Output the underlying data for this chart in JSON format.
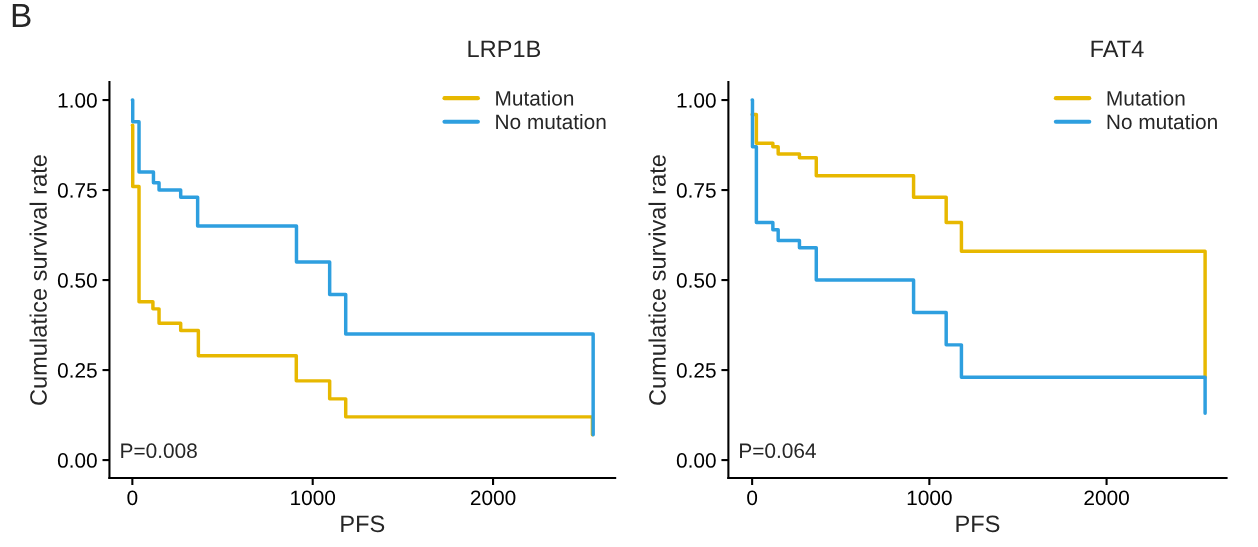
{
  "chart_data": [
    {
      "type": "step",
      "title": "LRP1B",
      "xlabel": "PFS",
      "ylabel": "Cumulatice survival rate",
      "annotations": [
        "P=0.008",
        "B"
      ],
      "xlim": [
        -127,
        2677
      ],
      "xticks": [
        0,
        1000,
        2000
      ],
      "ylim": [
        -0.05,
        1.05
      ],
      "yticks": [
        {
          "value": 0,
          "label": "0.00"
        },
        {
          "value": 0.25,
          "label": "0.25"
        },
        {
          "value": 0.5,
          "label": "0.50"
        },
        {
          "value": 0.75,
          "label": "0.75"
        },
        {
          "value": 1,
          "label": "1.00"
        }
      ],
      "grid": false,
      "legend": "top right",
      "series": [
        {
          "name": "Mutation",
          "color": "#e7b800",
          "x": [
            0,
            2,
            37,
            114,
            148,
            268,
            366,
            909,
            1094,
            1183,
            2551
          ],
          "values": [
            0.93,
            0.76,
            0.44,
            0.42,
            0.38,
            0.36,
            0.29,
            0.22,
            0.17,
            0.12,
            0.07
          ]
        },
        {
          "name": "No mutation",
          "color": "#2e9fdf",
          "x": [
            0,
            2,
            37,
            117,
            148,
            268,
            362,
            910,
            1094,
            1183,
            2555
          ],
          "values": [
            1.0,
            0.94,
            0.8,
            0.77,
            0.75,
            0.73,
            0.65,
            0.55,
            0.46,
            0.35,
            0.07
          ]
        }
      ]
    },
    {
      "type": "step",
      "title": "FAT4",
      "xlabel": "PFS",
      "ylabel": "Cumulatice survival rate",
      "annotations": [
        "P=0.064"
      ],
      "xlim": [
        -134,
        2677
      ],
      "xticks": [
        0,
        1000,
        2000
      ],
      "ylim": [
        -0.05,
        1.05
      ],
      "yticks": [
        {
          "value": 0,
          "label": "0.00"
        },
        {
          "value": 0.25,
          "label": "0.25"
        },
        {
          "value": 0.5,
          "label": "0.50"
        },
        {
          "value": 0.75,
          "label": "0.75"
        },
        {
          "value": 1,
          "label": "1.00"
        }
      ],
      "grid": false,
      "legend": "top right",
      "series": [
        {
          "name": "Mutation",
          "color": "#e7b800",
          "x": [
            0,
            24,
            117,
            147,
            267,
            362,
            911,
            1095,
            1181,
            2556
          ],
          "values": [
            0.96,
            0.88,
            0.87,
            0.85,
            0.84,
            0.79,
            0.73,
            0.66,
            0.58,
            0.23
          ]
        },
        {
          "name": "No mutation",
          "color": "#2e9fdf",
          "x": [
            0,
            2,
            24,
            117,
            147,
            267,
            362,
            911,
            1095,
            1181,
            2556
          ],
          "values": [
            1.0,
            0.87,
            0.66,
            0.64,
            0.61,
            0.59,
            0.5,
            0.41,
            0.32,
            0.23,
            0.13
          ]
        }
      ]
    }
  ]
}
